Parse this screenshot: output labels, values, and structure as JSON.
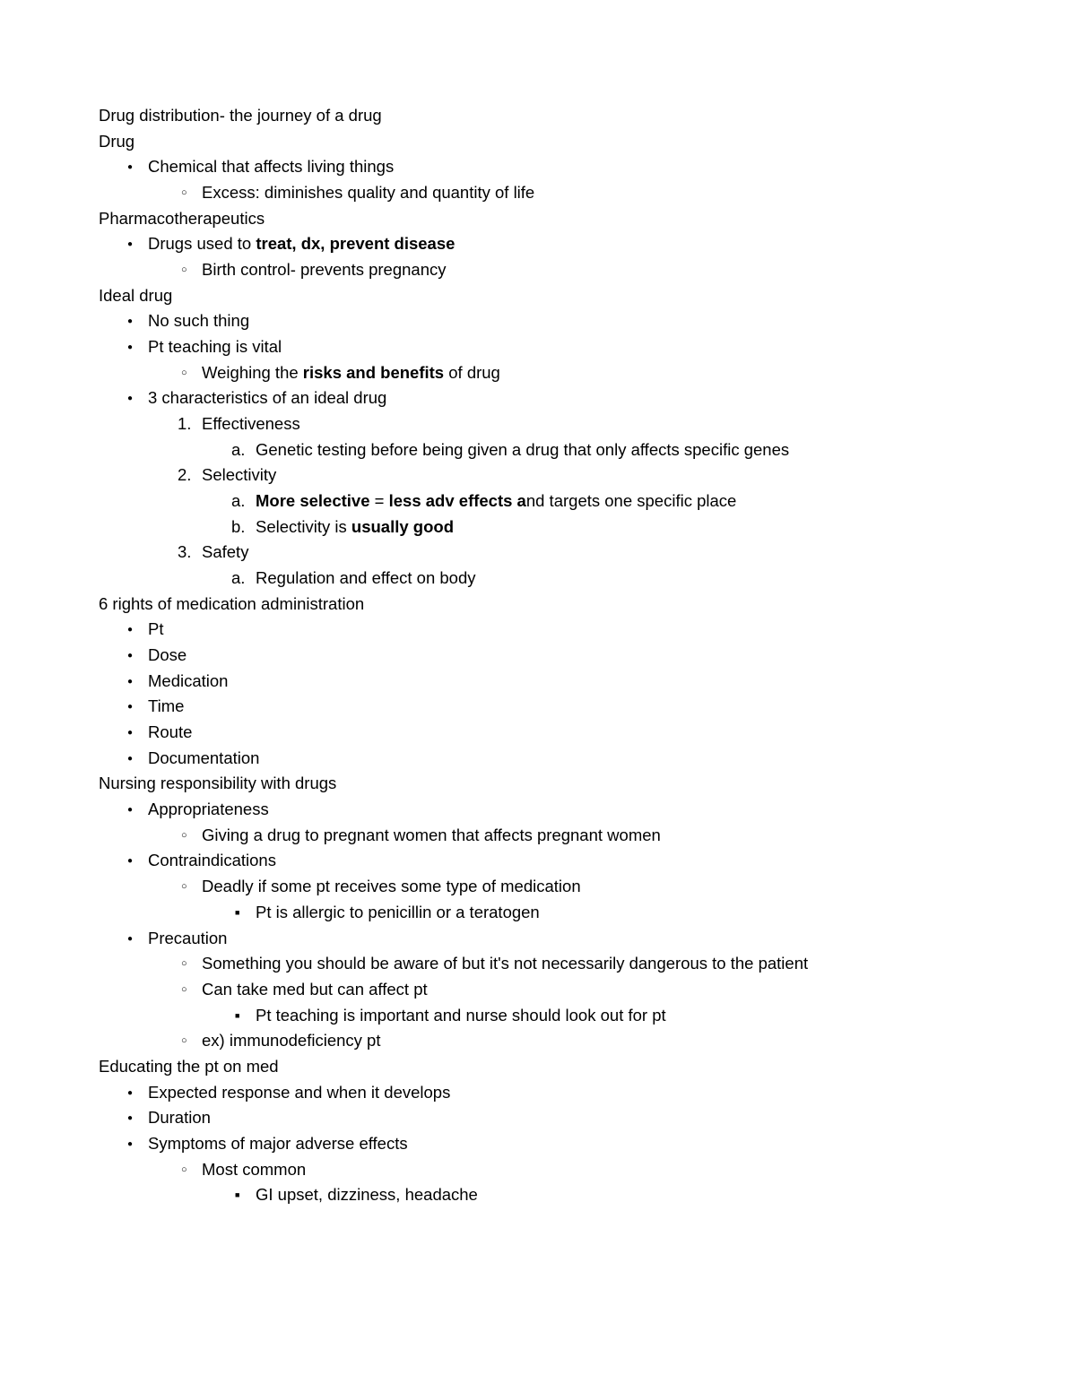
{
  "title": "Drug distribution- the journey of a drug",
  "sections": {
    "drug": {
      "heading": "Drug",
      "bullet1": "Chemical that affects living things",
      "sub1": "Excess: diminishes quality and quantity of life"
    },
    "pharmaco": {
      "heading": "Pharmacotherapeutics",
      "bullet1_pre": "Drugs used to ",
      "bullet1_bold": "treat, dx, prevent disease",
      "sub1": "Birth control- prevents pregnancy"
    },
    "ideal": {
      "heading": "Ideal drug",
      "b1": "No such thing",
      "b2": "Pt teaching is vital",
      "b2s1_pre": "Weighing the ",
      "b2s1_bold": "risks and benefits",
      "b2s1_post": " of drug",
      "b3": "3 characteristics of an ideal drug",
      "n1": "Effectiveness",
      "n1a": "Genetic testing before being given a drug that only affects specific genes",
      "n2": "Selectivity",
      "n2a_bold1": "More selective",
      "n2a_mid": " = ",
      "n2a_bold2": "less adv effects a",
      "n2a_post": "nd targets one specific place",
      "n2b_pre": "Selectivity is ",
      "n2b_bold": "usually good",
      "n3": "Safety",
      "n3a": "Regulation and effect on body"
    },
    "rights": {
      "heading": "6 rights of medication administration",
      "r1": "Pt",
      "r2": "Dose",
      "r3": "Medication",
      "r4": "Time",
      "r5": "Route",
      "r6": "Documentation"
    },
    "nursing": {
      "heading": "Nursing responsibility with drugs",
      "b1": "Appropriateness",
      "b1s1": "Giving a drug to pregnant women that affects pregnant women",
      "b2": "Contraindications",
      "b2s1": "Deadly if some pt receives some type of medication",
      "b2s1a": "Pt is allergic to penicillin or a teratogen",
      "b3": "Precaution",
      "b3s1": "Something you should be aware of but it's not necessarily dangerous to the patient",
      "b3s2": "Can take med but can affect pt",
      "b3s2a": "Pt teaching is important and nurse should look out for pt",
      "b3s3": "ex) immunodeficiency pt"
    },
    "educating": {
      "heading": "Educating the pt on med",
      "b1": "Expected response and when it develops",
      "b2": "Duration",
      "b3": "Symptoms of major adverse effects",
      "b3s1": "Most common",
      "b3s1a": "GI upset, dizziness, headache"
    }
  },
  "markers": {
    "one": "1.",
    "two": "2.",
    "three": "3.",
    "a": "a.",
    "b": "b."
  }
}
